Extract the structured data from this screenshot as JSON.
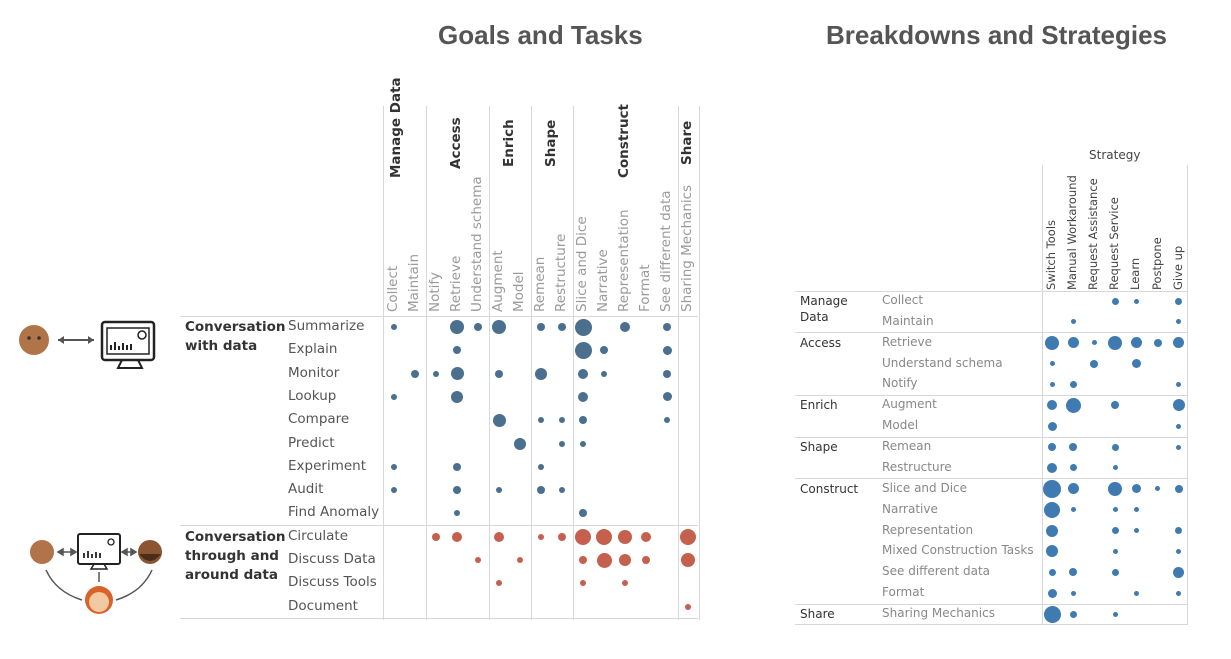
{
  "titles": {
    "left": "Goals and Tasks",
    "right": "Breakdowns and Strategies"
  },
  "colors": {
    "blue": "#4a6f8f",
    "red": "#c5604f",
    "right_blue": "#3f7bb0"
  },
  "icons": {
    "single": [
      "person-icon",
      "double-arrow-icon",
      "monitor-dashboard-icon"
    ],
    "group": [
      "person-icon",
      "monitor-dashboard-icon",
      "person-beard-icon",
      "person-red-hair-icon",
      "arrow-icons"
    ]
  },
  "chart_data": [
    {
      "type": "scatter",
      "title": "Goals and Tasks",
      "column_groups": [
        {
          "label": "Manage Data",
          "columns": [
            "Collect",
            "Maintain"
          ]
        },
        {
          "label": "Access",
          "columns": [
            "Notify",
            "Retrieve",
            "Understand schema"
          ]
        },
        {
          "label": "Enrich",
          "columns": [
            "Augment",
            "Model"
          ]
        },
        {
          "label": "Shape",
          "columns": [
            "Remean",
            "Restructure"
          ]
        },
        {
          "label": "Construct",
          "columns": [
            "Slice and Dice",
            "Narrative",
            "Representation",
            "Format",
            "See different data"
          ]
        },
        {
          "label": "Share",
          "columns": [
            "Sharing Mechanics"
          ]
        }
      ],
      "row_groups": [
        {
          "label": "Conversation with data",
          "color": "blue",
          "rows": [
            {
              "label": "Summarize",
              "values": {
                "Collect": 3,
                "Retrieve": 7,
                "Understand schema": 4,
                "Augment": 7,
                "Remean": 4,
                "Restructure": 4,
                "Slice and Dice": 8.5,
                "Representation": 5,
                "See different data": 4
              }
            },
            {
              "label": "Explain",
              "values": {
                "Retrieve": 4,
                "Slice and Dice": 8.5,
                "Narrative": 4,
                "See different data": 4.5
              }
            },
            {
              "label": "Monitor",
              "values": {
                "Maintain": 4,
                "Notify": 3,
                "Retrieve": 6.5,
                "Augment": 4,
                "Remean": 6,
                "Slice and Dice": 5,
                "Narrative": 3,
                "See different data": 4
              }
            },
            {
              "label": "Lookup",
              "values": {
                "Collect": 3,
                "Retrieve": 6,
                "Slice and Dice": 5,
                "See different data": 4.5
              }
            },
            {
              "label": "Compare",
              "values": {
                "Augment": 6.5,
                "Remean": 3,
                "Restructure": 3,
                "Slice and Dice": 4,
                "See different data": 3
              }
            },
            {
              "label": "Predict",
              "values": {
                "Model": 6,
                "Restructure": 3,
                "Slice and Dice": 3
              }
            },
            {
              "label": "Experiment",
              "values": {
                "Collect": 3,
                "Retrieve": 4,
                "Remean": 3
              }
            },
            {
              "label": "Audit",
              "values": {
                "Collect": 3,
                "Retrieve": 4,
                "Augment": 3,
                "Remean": 4,
                "Restructure": 3
              }
            },
            {
              "label": "Find Anomaly",
              "values": {
                "Retrieve": 3,
                "Slice and Dice": 4
              }
            }
          ]
        },
        {
          "label": "Conversation through and around data",
          "color": "red",
          "rows": [
            {
              "label": "Circulate",
              "values": {
                "Notify": 4,
                "Retrieve": 5,
                "Augment": 5,
                "Remean": 3,
                "Restructure": 4,
                "Slice and Dice": 8,
                "Narrative": 8,
                "Representation": 7,
                "Format": 5,
                "Sharing Mechanics": 8
              }
            },
            {
              "label": "Discuss Data",
              "values": {
                "Understand schema": 3,
                "Model": 3,
                "Slice and Dice": 4,
                "Narrative": 7.5,
                "Representation": 6,
                "Format": 4,
                "Sharing Mechanics": 7
              }
            },
            {
              "label": "Discuss Tools",
              "values": {
                "Augment": 3,
                "Slice and Dice": 3,
                "Representation": 3
              }
            },
            {
              "label": "Document",
              "values": {
                "Sharing Mechanics": 3
              }
            }
          ]
        }
      ]
    },
    {
      "type": "scatter",
      "title": "Breakdowns and Strategies",
      "column_header": "Strategy",
      "columns": [
        "Switch Tools",
        "Manual Workaround",
        "Request Assistance",
        "Request Service",
        "Learn",
        "Postpone",
        "Give up"
      ],
      "row_groups": [
        {
          "label": "Manage Data",
          "rows": [
            {
              "label": "Collect",
              "values": {
                "Request Service": 3.5,
                "Learn": 2.5,
                "Give up": 3.5
              }
            },
            {
              "label": "Maintain",
              "values": {
                "Manual Workaround": 2.5,
                "Give up": 2.5
              }
            }
          ]
        },
        {
          "label": "Access",
          "rows": [
            {
              "label": "Retrieve",
              "values": {
                "Switch Tools": 7,
                "Manual Workaround": 5.5,
                "Request Assistance": 2.5,
                "Request Service": 7,
                "Learn": 5.5,
                "Postpone": 4,
                "Give up": 5.5
              }
            },
            {
              "label": "Understand schema",
              "values": {
                "Switch Tools": 2.5,
                "Request Assistance": 4,
                "Learn": 4.5
              }
            },
            {
              "label": "Notify",
              "values": {
                "Switch Tools": 2.5,
                "Manual Workaround": 3.5,
                "Give up": 2.5
              }
            }
          ]
        },
        {
          "label": "Enrich",
          "rows": [
            {
              "label": "Augment",
              "values": {
                "Switch Tools": 5,
                "Manual Workaround": 7.5,
                "Request Service": 4,
                "Give up": 6
              }
            },
            {
              "label": "Model",
              "values": {
                "Switch Tools": 4.5,
                "Give up": 2.5
              }
            }
          ]
        },
        {
          "label": "Shape",
          "rows": [
            {
              "label": "Remean",
              "values": {
                "Switch Tools": 4,
                "Manual Workaround": 4,
                "Request Service": 3.5,
                "Give up": 2.5
              }
            },
            {
              "label": "Restructure",
              "values": {
                "Switch Tools": 5,
                "Manual Workaround": 3.5,
                "Request Service": 2.5
              }
            }
          ]
        },
        {
          "label": "Construct",
          "rows": [
            {
              "label": "Slice and Dice",
              "values": {
                "Switch Tools": 9,
                "Manual Workaround": 5.5,
                "Request Service": 7,
                "Learn": 4.5,
                "Postpone": 2.5,
                "Give up": 4
              }
            },
            {
              "label": "Narrative",
              "values": {
                "Switch Tools": 8,
                "Manual Workaround": 2.5,
                "Request Service": 2.5,
                "Learn": 2.5
              }
            },
            {
              "label": "Representation",
              "values": {
                "Switch Tools": 6,
                "Request Service": 3.5,
                "Learn": 2.5,
                "Give up": 3.5
              }
            },
            {
              "label": "Mixed Construction Tasks",
              "values": {
                "Switch Tools": 6,
                "Request Service": 2.5,
                "Give up": 2.5
              }
            },
            {
              "label": "See different data",
              "values": {
                "Switch Tools": 3.5,
                "Manual Workaround": 4,
                "Request Service": 3.5,
                "Give up": 5.5
              }
            },
            {
              "label": "Format",
              "values": {
                "Switch Tools": 4.5,
                "Manual Workaround": 2.5,
                "Learn": 2.5,
                "Give up": 2.5
              }
            }
          ]
        },
        {
          "label": "Share",
          "rows": [
            {
              "label": "Sharing Mechanics",
              "values": {
                "Switch Tools": 8.5,
                "Manual Workaround": 3.5,
                "Request Service": 2.5
              }
            }
          ]
        }
      ]
    }
  ]
}
